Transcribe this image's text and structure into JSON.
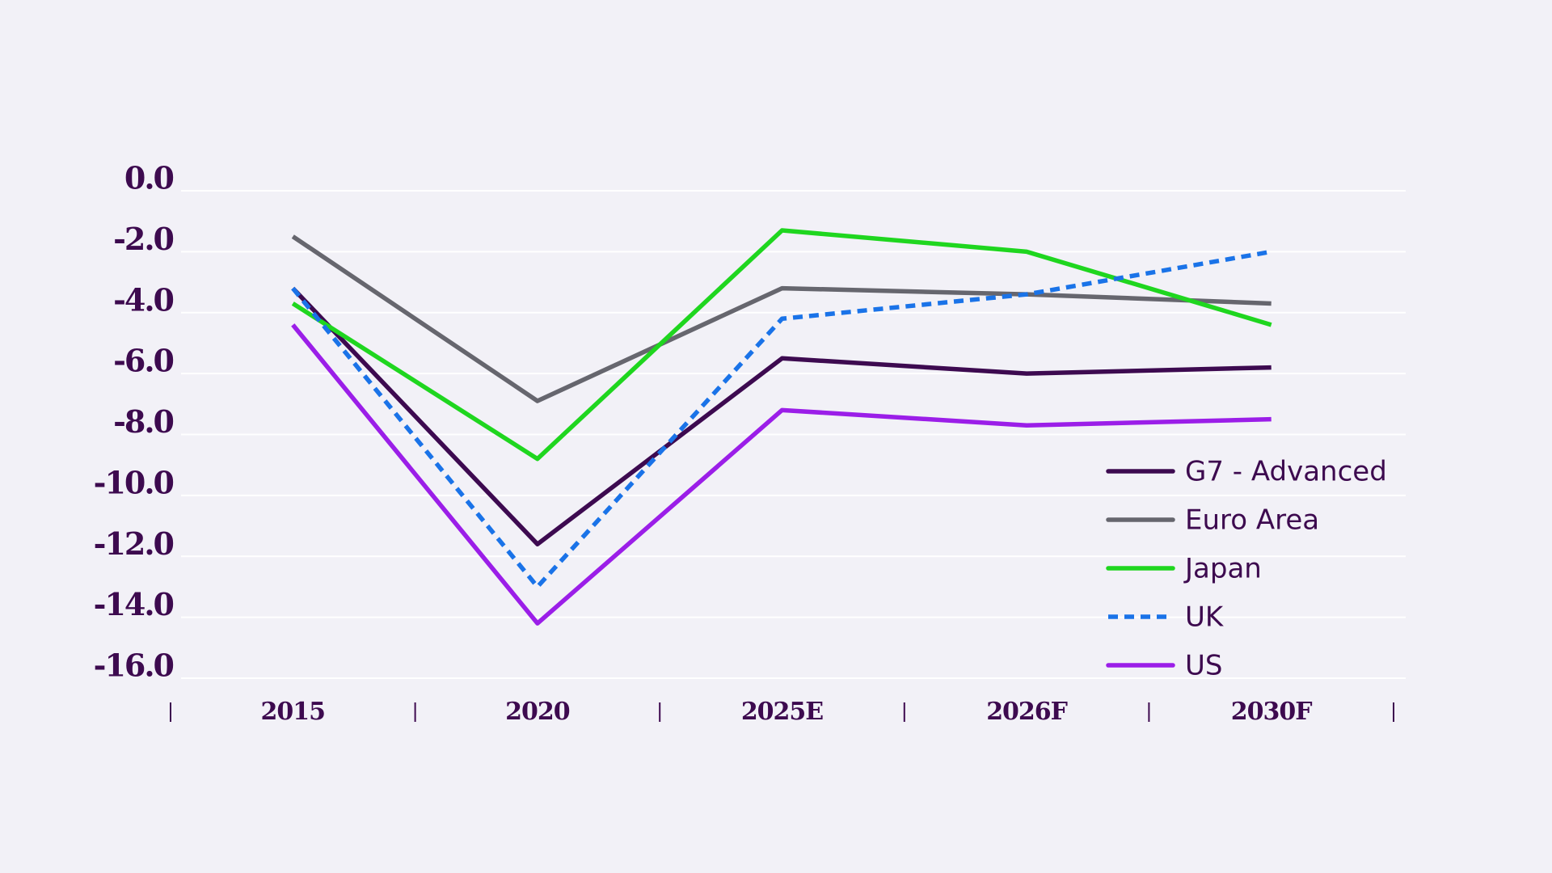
{
  "chart_data": {
    "type": "line",
    "categories": [
      "2015",
      "2020",
      "2025E",
      "2026F",
      "2030F"
    ],
    "series": [
      {
        "name": "G7 - Advanced",
        "color": "#3d0a50",
        "values": [
          -3.2,
          -11.6,
          -5.5,
          -6.0,
          -5.8
        ]
      },
      {
        "name": "Euro Area",
        "color": "#66666e",
        "values": [
          -1.5,
          -6.9,
          -3.2,
          -3.4,
          -3.7
        ]
      },
      {
        "name": "Japan",
        "color": "#1fd61f",
        "values": [
          -3.7,
          -8.8,
          -1.3,
          -2.0,
          -4.4
        ]
      },
      {
        "name": "UK",
        "color": "#1a73e8",
        "line_style": "dashed",
        "values": [
          -3.2,
          -13.0,
          -4.2,
          -3.4,
          -2.0
        ]
      },
      {
        "name": "US",
        "color": "#9b1ee8",
        "values": [
          -4.4,
          -14.2,
          -7.2,
          -7.7,
          -7.5
        ]
      }
    ],
    "ylim": [
      -16,
      0
    ],
    "yticks": [
      {
        "value": 0,
        "label": "0.0"
      },
      {
        "value": -2,
        "label": "-2.0"
      },
      {
        "value": -4,
        "label": "-4.0"
      },
      {
        "value": -6,
        "label": "-6.0"
      },
      {
        "value": -8,
        "label": "-8.0"
      },
      {
        "value": -10,
        "label": "-10.0"
      },
      {
        "value": -12,
        "label": "-12.0"
      },
      {
        "value": -14,
        "label": "-14.0"
      },
      {
        "value": -16,
        "label": "-16.0"
      }
    ],
    "grid": true,
    "legend": "bottom-right"
  }
}
